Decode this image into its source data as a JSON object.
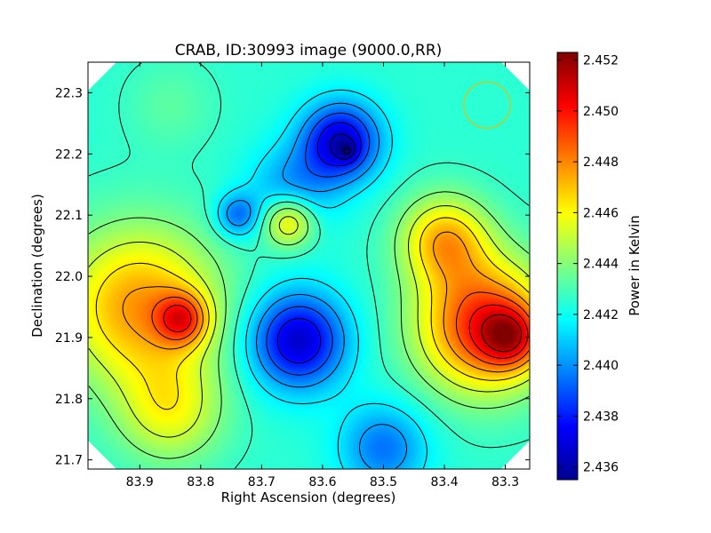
{
  "chart_data": {
    "type": "heatmap",
    "title": "CRAB, ID:30993 image (9000.0,RR)",
    "xlabel": "Right Ascension (degrees)",
    "ylabel": "Declination (degrees)",
    "xlim": [
      83.985,
      83.26
    ],
    "ylim": [
      21.685,
      22.35
    ],
    "x_ticks": [
      "83.9",
      "83.8",
      "83.7",
      "83.6",
      "83.5",
      "83.4",
      "83.3"
    ],
    "x_tick_values": [
      83.9,
      83.8,
      83.7,
      83.6,
      83.5,
      83.4,
      83.3
    ],
    "y_ticks": [
      "21.7",
      "21.8",
      "21.9",
      "22.0",
      "22.1",
      "22.2",
      "22.3"
    ],
    "y_tick_values": [
      21.7,
      21.8,
      21.9,
      22.0,
      22.1,
      22.2,
      22.3
    ],
    "colorbar": {
      "label": "Power in Kelvin",
      "min": 2.4355,
      "max": 2.4523,
      "ticks": [
        "2.436",
        "2.438",
        "2.440",
        "2.442",
        "2.444",
        "2.446",
        "2.448",
        "2.450",
        "2.452"
      ],
      "tick_values": [
        2.436,
        2.438,
        2.44,
        2.442,
        2.444,
        2.446,
        2.448,
        2.45,
        2.452
      ],
      "colormap": "jet"
    },
    "field_components": [
      {
        "ra": 83.335,
        "dec": 21.92,
        "amp": 0.0072,
        "sigma": 0.075
      },
      {
        "ra": 83.4,
        "dec": 22.06,
        "amp": 0.0045,
        "sigma": 0.05
      },
      {
        "ra": 83.29,
        "dec": 21.9,
        "amp": 0.004,
        "sigma": 0.035
      },
      {
        "ra": 83.9,
        "dec": 21.95,
        "amp": 0.0052,
        "sigma": 0.09
      },
      {
        "ra": 83.83,
        "dec": 21.93,
        "amp": 0.0045,
        "sigma": 0.03
      },
      {
        "ra": 83.85,
        "dec": 21.78,
        "amp": 0.003,
        "sigma": 0.06
      },
      {
        "ra": 83.64,
        "dec": 21.895,
        "amp": -0.0058,
        "sigma": 0.055
      },
      {
        "ra": 83.57,
        "dec": 22.22,
        "amp": -0.0058,
        "sigma": 0.045
      },
      {
        "ra": 83.56,
        "dec": 22.205,
        "amp": -0.0015,
        "sigma": 0.012
      },
      {
        "ra": 83.74,
        "dec": 22.1,
        "amp": -0.003,
        "sigma": 0.025
      },
      {
        "ra": 83.65,
        "dec": 22.14,
        "amp": -0.0025,
        "sigma": 0.05
      },
      {
        "ra": 83.5,
        "dec": 21.72,
        "amp": -0.003,
        "sigma": 0.05
      },
      {
        "ra": 83.655,
        "dec": 22.09,
        "amp": 0.0045,
        "sigma": 0.03
      },
      {
        "ra": 83.85,
        "dec": 22.28,
        "amp": 0.0008,
        "sigma": 0.05
      }
    ],
    "field_base": 2.4425,
    "contour_levels": [
      2.4367,
      2.4379,
      2.4391,
      2.4403,
      2.4415,
      2.4427,
      2.4439,
      2.4451,
      2.4463,
      2.4475,
      2.4487,
      2.4499,
      2.4511
    ],
    "beam_circle": {
      "ra": 83.33,
      "dec": 22.28,
      "radius_deg": 0.038,
      "color": "#c8c820"
    },
    "source_marker": {
      "ra": 83.56,
      "dec": 22.205
    }
  }
}
